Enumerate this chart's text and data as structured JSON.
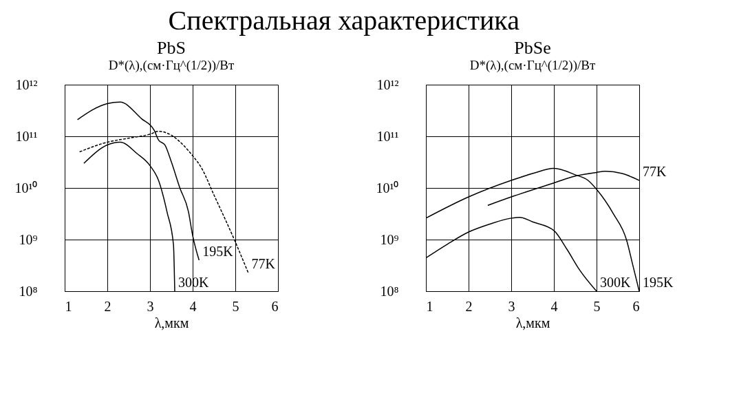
{
  "chart_data": [
    {
      "type": "line",
      "title": "Спектральная характеристика",
      "subtitle": "PbS",
      "ylabel": "D*(λ),(см·Гц^(1/2))/Вт",
      "xlabel": "λ,мкм",
      "log": "y",
      "grid": true,
      "marker": "none",
      "xlim": [
        1,
        6
      ],
      "xticks": [
        1,
        2,
        3,
        4,
        5,
        6
      ],
      "ylim": [
        100000000.0,
        1000000000000.0
      ],
      "yticks": [
        {
          "value": 100000000.0,
          "label": "10⁸"
        },
        {
          "value": 1000000000.0,
          "label": "10⁹"
        },
        {
          "value": 10000000000.0,
          "label": "10¹⁰"
        },
        {
          "value": 100000000000.0,
          "label": "10¹¹"
        },
        {
          "value": 1000000000000.0,
          "label": "10¹²"
        }
      ],
      "series": [
        {
          "name": "195K",
          "color": "#000000",
          "line_style": "solid",
          "x": [
            1.3,
            2,
            2.3,
            2.8,
            3.1,
            3.2,
            3.35,
            3.5,
            3.7,
            3.9,
            4.0,
            4.15
          ],
          "values": [
            210000000000.0,
            430000000000.0,
            460000000000.0,
            220000000000.0,
            130000000000.0,
            85000000000.0,
            68000000000.0,
            32000000000.0,
            10000000000.0,
            3500000000.0,
            1200000000.0,
            400000000.0
          ]
        },
        {
          "name": "77K",
          "color": "#000000",
          "line_style": "dashed",
          "x": [
            1.35,
            2,
            2.5,
            3,
            3.2,
            3.5,
            3.8,
            4,
            4.2,
            4.5,
            5,
            5.3
          ],
          "values": [
            50000000000.0,
            77000000000.0,
            92000000000.0,
            110000000000.0,
            125000000000.0,
            105000000000.0,
            65000000000.0,
            42000000000.0,
            25000000000.0,
            7300000000.0,
            900000000.0,
            230000000.0
          ]
        },
        {
          "name": "300K",
          "color": "#000000",
          "line_style": "solid",
          "x": [
            1.45,
            2,
            2.3,
            2.7,
            3,
            3.2,
            3.4,
            3.55,
            3.58
          ],
          "values": [
            30000000000.0,
            68000000000.0,
            77000000000.0,
            46000000000.0,
            27000000000.0,
            14000000000.0,
            3400000000.0,
            800000000.0,
            100000000.0
          ]
        }
      ]
    },
    {
      "type": "line",
      "subtitle": "PbSe",
      "ylabel": "D*(λ),(см·Гц^(1/2))/Вт",
      "xlabel": "λ,мкм",
      "log": "y",
      "grid": true,
      "marker": "none",
      "xlim": [
        1,
        6
      ],
      "xticks": [
        1,
        2,
        3,
        4,
        5,
        6
      ],
      "ylim": [
        100000000.0,
        1000000000000.0
      ],
      "yticks": [
        {
          "value": 100000000.0,
          "label": "10⁸"
        },
        {
          "value": 1000000000.0,
          "label": "10⁹"
        },
        {
          "value": 10000000000.0,
          "label": "10¹⁰"
        },
        {
          "value": 100000000000.0,
          "label": "10¹¹"
        },
        {
          "value": 1000000000000.0,
          "label": "10¹²"
        }
      ],
      "series": [
        {
          "name": "195K",
          "color": "#000000",
          "line_style": "solid",
          "x": [
            1,
            2,
            3,
            3.5,
            4,
            4.5,
            4.8,
            5,
            5.4,
            5.7,
            5.85,
            6
          ],
          "values": [
            2600000000.0,
            6700000000.0,
            14000000000.0,
            19000000000.0,
            24000000000.0,
            18000000000.0,
            14000000000.0,
            9400000000.0,
            3100000000.0,
            1000000000.0,
            320000000.0,
            100000000.0
          ]
        },
        {
          "name": "77K",
          "color": "#000000",
          "line_style": "solid",
          "x": [
            2.45,
            3,
            4,
            4.5,
            5,
            5.2,
            5.6,
            6
          ],
          "values": [
            4600000000.0,
            6700000000.0,
            12500000000.0,
            17000000000.0,
            20000000000.0,
            21000000000.0,
            19000000000.0,
            14000000000.0
          ]
        },
        {
          "name": "300K",
          "color": "#000000",
          "line_style": "solid",
          "x": [
            1,
            1.5,
            2,
            2.5,
            3,
            3.2,
            3.5,
            4,
            4.3,
            4.6,
            5
          ],
          "values": [
            440000000.0,
            810000000.0,
            1400000000.0,
            2000000000.0,
            2600000000.0,
            2700000000.0,
            2200000000.0,
            1500000000.0,
            660000000.0,
            260000000.0,
            100000000.0
          ]
        }
      ]
    }
  ]
}
